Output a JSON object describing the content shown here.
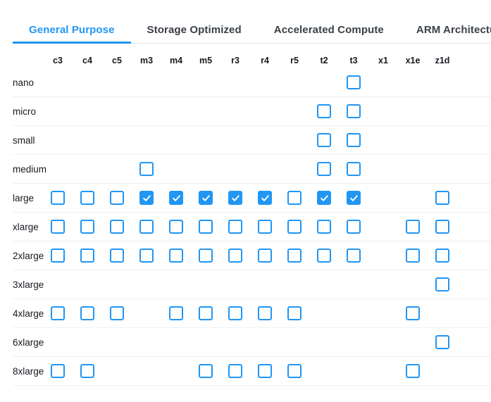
{
  "tabs": [
    {
      "id": "general-purpose",
      "label": "General Purpose",
      "active": true
    },
    {
      "id": "storage-optimized",
      "label": "Storage Optimized",
      "active": false
    },
    {
      "id": "accelerated-compute",
      "label": "Accelerated Compute",
      "active": false
    },
    {
      "id": "arm-architecture",
      "label": "ARM Architecture",
      "active": false
    }
  ],
  "matrix": {
    "columns": [
      "c3",
      "c4",
      "c5",
      "m3",
      "m4",
      "m5",
      "r3",
      "r4",
      "r5",
      "t2",
      "t3",
      "x1",
      "x1e",
      "z1d"
    ],
    "rows": [
      {
        "label": "nano",
        "cells": [
          "",
          "",
          "",
          "",
          "",
          "",
          "",
          "",
          "",
          "",
          "box",
          "",
          "",
          ""
        ]
      },
      {
        "label": "micro",
        "cells": [
          "",
          "",
          "",
          "",
          "",
          "",
          "",
          "",
          "",
          "box",
          "box",
          "",
          "",
          ""
        ]
      },
      {
        "label": "small",
        "cells": [
          "",
          "",
          "",
          "",
          "",
          "",
          "",
          "",
          "",
          "box",
          "box",
          "",
          "",
          ""
        ]
      },
      {
        "label": "medium",
        "cells": [
          "",
          "",
          "",
          "box",
          "",
          "",
          "",
          "",
          "",
          "box",
          "box",
          "",
          "",
          ""
        ]
      },
      {
        "label": "large",
        "cells": [
          "box",
          "box",
          "box",
          "checked",
          "checked",
          "checked",
          "checked",
          "checked",
          "box",
          "checked",
          "checked",
          "",
          "",
          "box"
        ]
      },
      {
        "label": "xlarge",
        "cells": [
          "box",
          "box",
          "box",
          "box",
          "box",
          "box",
          "box",
          "box",
          "box",
          "box",
          "box",
          "",
          "box",
          "box"
        ]
      },
      {
        "label": "2xlarge",
        "cells": [
          "box",
          "box",
          "box",
          "box",
          "box",
          "box",
          "box",
          "box",
          "box",
          "box",
          "box",
          "",
          "box",
          "box"
        ]
      },
      {
        "label": "3xlarge",
        "cells": [
          "",
          "",
          "",
          "",
          "",
          "",
          "",
          "",
          "",
          "",
          "",
          "",
          "",
          "box"
        ]
      },
      {
        "label": "4xlarge",
        "cells": [
          "box",
          "box",
          "box",
          "",
          "box",
          "box",
          "box",
          "box",
          "box",
          "",
          "",
          "",
          "box",
          ""
        ]
      },
      {
        "label": "6xlarge",
        "cells": [
          "",
          "",
          "",
          "",
          "",
          "",
          "",
          "",
          "",
          "",
          "",
          "",
          "",
          "box"
        ]
      },
      {
        "label": "8xlarge",
        "cells": [
          "box",
          "box",
          "",
          "",
          "",
          "box",
          "box",
          "box",
          "box",
          "",
          "",
          "",
          "box",
          ""
        ]
      }
    ]
  },
  "colors": {
    "accent": "#2196F3",
    "tab_inactive_text": "#3B4045",
    "label_text": "#16191F",
    "separator": "#F0F0F0",
    "tabbar_border": "#E3E3E3",
    "checkmark": "#FFFFFF"
  },
  "icons": {
    "checked_cell": "check-icon"
  }
}
